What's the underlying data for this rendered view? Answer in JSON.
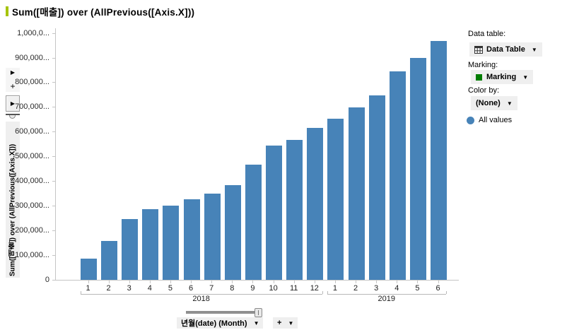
{
  "title": {
    "text": "Sum([매출]) over (AllPrevious([Axis.X]))"
  },
  "y_axis": {
    "rotated_label": "Sum([매출]) over (AllPrevious([Axis.X]))",
    "tick_labels_top_to_bottom": [
      "1,000,0...",
      "900,000...",
      "800,000...",
      "700,000...",
      "600,000...",
      "500,000...",
      "400,000...",
      "300,000...",
      "200,000...",
      "100,000...",
      "0"
    ],
    "tick_values_top_to_bottom": [
      1000000,
      900000,
      800000,
      700000,
      600000,
      500000,
      400000,
      300000,
      200000,
      100000,
      0
    ]
  },
  "chart_data": {
    "type": "bar",
    "title": "Sum([매출]) over (AllPrevious([Axis.X]))",
    "xlabel": "년월(date) (Month)",
    "ylabel": "Sum([매출]) over (AllPrevious([Axis.X]))",
    "ylim": [
      0,
      1000000
    ],
    "grid": false,
    "bar_color": "#4783b8",
    "categories": [
      "2018-1",
      "2018-2",
      "2018-3",
      "2018-4",
      "2018-5",
      "2018-6",
      "2018-7",
      "2018-8",
      "2018-9",
      "2018-10",
      "2018-11",
      "2018-12",
      "2019-1",
      "2019-2",
      "2019-3",
      "2019-4",
      "2019-5",
      "2019-6"
    ],
    "values": [
      85000,
      157000,
      246000,
      286000,
      301000,
      327000,
      349000,
      384000,
      468000,
      545000,
      567000,
      616000,
      653000,
      700000,
      748000,
      847000,
      901000,
      968000
    ],
    "groups": [
      {
        "year": "2018",
        "months": [
          "1",
          "2",
          "3",
          "4",
          "5",
          "6",
          "7",
          "8",
          "9",
          "10",
          "11",
          "12"
        ]
      },
      {
        "year": "2019",
        "months": [
          "1",
          "2",
          "3",
          "4",
          "5",
          "6"
        ]
      }
    ],
    "legend": [
      {
        "label": "All values",
        "color": "#4783b8"
      }
    ],
    "legend_position": "right"
  },
  "panel": {
    "data_table_label": "Data table:",
    "data_table_value": "Data Table",
    "marking_label": "Marking:",
    "marking_value": "Marking",
    "marking_color": "#007d00",
    "color_by_label": "Color by:",
    "color_by_value": "(None)",
    "legend_item": "All values"
  },
  "controls": {
    "x_axis_selector": "년월(date) (Month)",
    "zoom_plus": "+"
  },
  "icons": {
    "dropdown_arrow": "▼",
    "slider_arrow": "▶",
    "plus": "+"
  }
}
